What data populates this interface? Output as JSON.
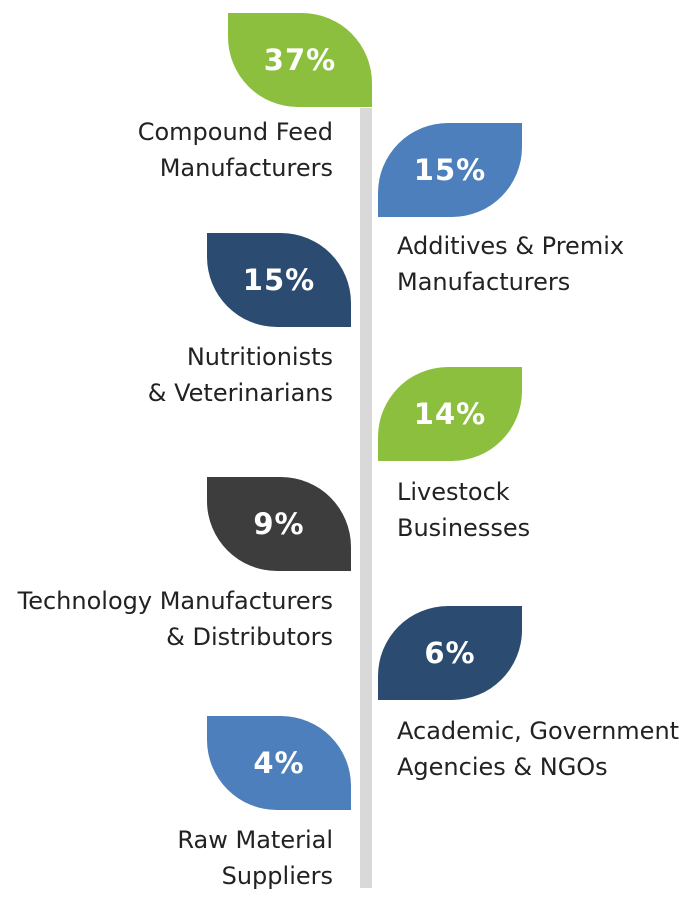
{
  "colors": {
    "green": "#8dbf3f",
    "light_blue": "#4c7fbc",
    "dark_blue": "#2b4c70",
    "dark_gray": "#3d3d3d",
    "stem": "#d9d9d9"
  },
  "segments": [
    {
      "percent": "37%",
      "value": 37,
      "color": "green",
      "side": "left",
      "label_lines": [
        "Compound Feed",
        "Manufacturers"
      ]
    },
    {
      "percent": "15%",
      "value": 15,
      "color": "light_blue",
      "side": "right",
      "label_lines": [
        "Additives & Premix",
        "Manufacturers"
      ]
    },
    {
      "percent": "15%",
      "value": 15,
      "color": "dark_blue",
      "side": "left",
      "label_lines": [
        "Nutritionists",
        "& Veterinarians"
      ]
    },
    {
      "percent": "14%",
      "value": 14,
      "color": "green",
      "side": "right",
      "label_lines": [
        "Livestock",
        "Businesses"
      ]
    },
    {
      "percent": "9%",
      "value": 9,
      "color": "dark_gray",
      "side": "left",
      "label_lines": [
        "Technology Manufacturers",
        "& Distributors"
      ]
    },
    {
      "percent": "6%",
      "value": 6,
      "color": "dark_blue",
      "side": "right",
      "label_lines": [
        "Academic, Government",
        "Agencies & NGOs"
      ]
    },
    {
      "percent": "4%",
      "value": 4,
      "color": "light_blue",
      "side": "left",
      "label_lines": [
        "Raw Material",
        "Suppliers"
      ]
    }
  ]
}
